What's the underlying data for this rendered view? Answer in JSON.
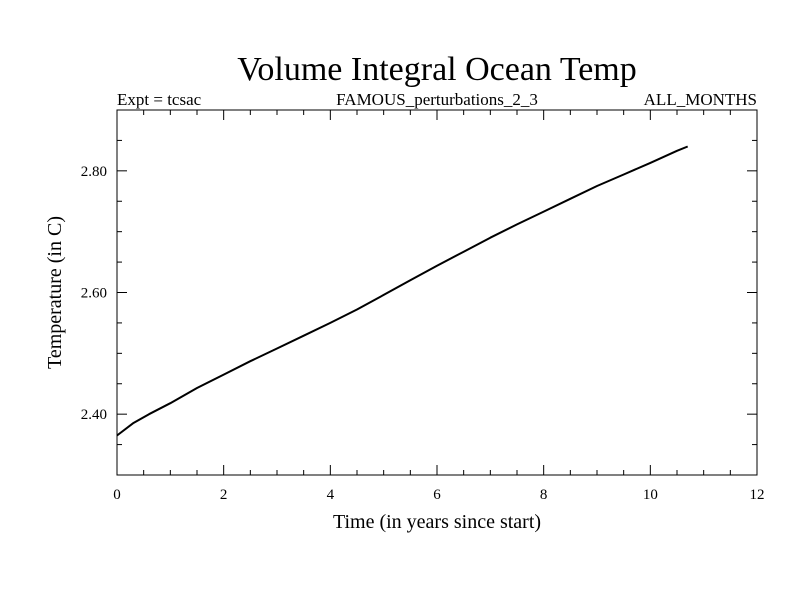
{
  "chart_data": {
    "type": "line",
    "title": "Volume Integral Ocean Temp",
    "subtitle_left": "Expt = tcsac",
    "subtitle_center": "FAMOUS_perturbations_2_3",
    "subtitle_right": "ALL_MONTHS",
    "xlabel": "Time (in years since start)",
    "ylabel": "Temperature (in C)",
    "xlim": [
      0,
      12
    ],
    "ylim": [
      2.3,
      2.9
    ],
    "xticks": [
      0,
      2,
      4,
      6,
      8,
      10,
      12
    ],
    "xtick_labels": [
      "0",
      "2",
      "4",
      "6",
      "8",
      "10",
      "12"
    ],
    "yticks": [
      2.4,
      2.6,
      2.8
    ],
    "ytick_labels": [
      "2.40",
      "2.60",
      "2.80"
    ],
    "grid": false,
    "series": [
      {
        "name": "Volume Integral Ocean Temp",
        "x": [
          0,
          0.3,
          0.6,
          1.0,
          1.5,
          2.0,
          2.5,
          3.0,
          3.5,
          4.0,
          4.5,
          5.0,
          5.5,
          6.0,
          6.5,
          7.0,
          7.5,
          8.0,
          8.5,
          9.0,
          9.5,
          10.0,
          10.5,
          10.7
        ],
        "y": [
          2.365,
          2.385,
          2.4,
          2.418,
          2.443,
          2.465,
          2.487,
          2.508,
          2.529,
          2.55,
          2.572,
          2.596,
          2.62,
          2.644,
          2.667,
          2.69,
          2.712,
          2.733,
          2.754,
          2.775,
          2.794,
          2.813,
          2.833,
          2.84
        ]
      }
    ]
  }
}
